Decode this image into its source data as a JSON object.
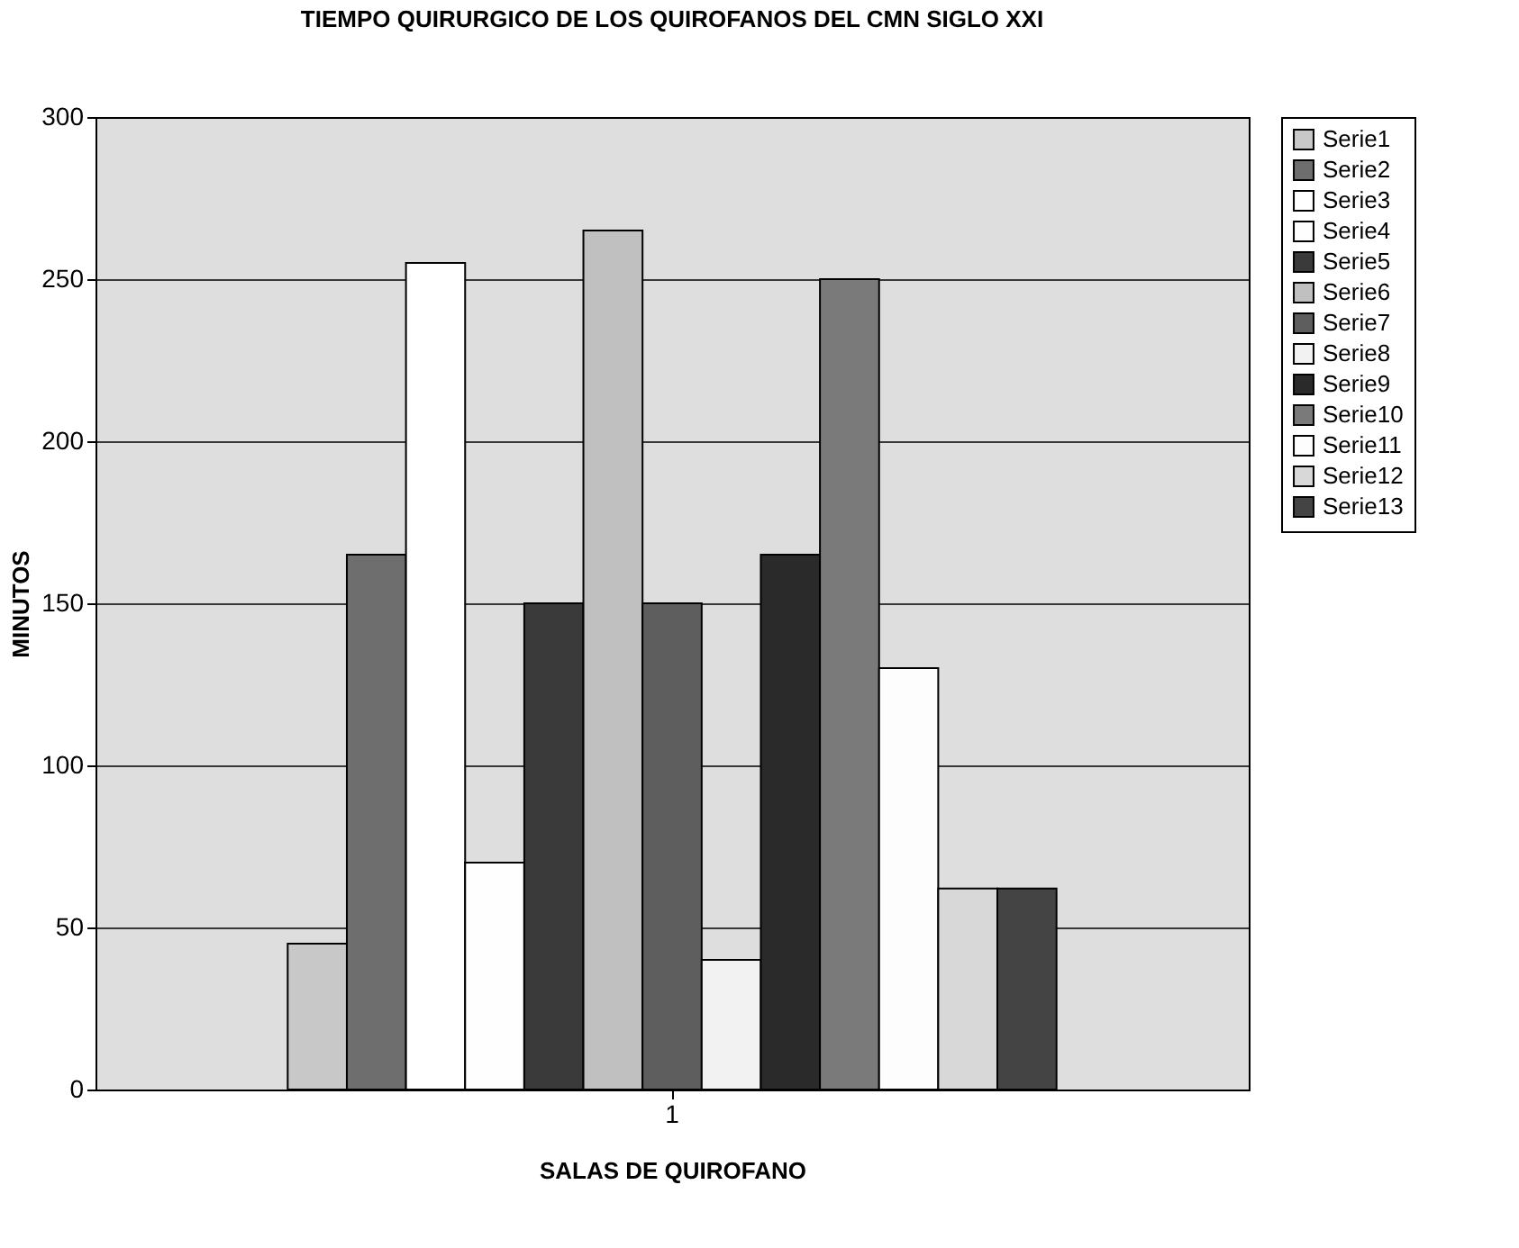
{
  "chart_data": {
    "type": "bar",
    "title": "TIEMPO QUIRURGICO DE LOS QUIROFANOS DEL CMN SIGLO XXI",
    "xlabel": "SALAS DE QUIROFANO",
    "ylabel": "MINUTOS",
    "categories": [
      "1"
    ],
    "series": [
      {
        "name": "Serie1",
        "color": "#c8c8c8",
        "values": [
          45
        ]
      },
      {
        "name": "Serie2",
        "color": "#6e6e6e",
        "values": [
          165
        ]
      },
      {
        "name": "Serie3",
        "color": "#ffffff",
        "values": [
          255
        ]
      },
      {
        "name": "Serie4",
        "color": "#fefefe",
        "values": [
          70
        ]
      },
      {
        "name": "Serie5",
        "color": "#3a3a3a",
        "values": [
          150
        ]
      },
      {
        "name": "Serie6",
        "color": "#c0c0c0",
        "values": [
          265
        ]
      },
      {
        "name": "Serie7",
        "color": "#5e5e5e",
        "values": [
          150
        ]
      },
      {
        "name": "Serie8",
        "color": "#f2f2f2",
        "values": [
          40
        ]
      },
      {
        "name": "Serie9",
        "color": "#2a2a2a",
        "values": [
          165
        ]
      },
      {
        "name": "Serie10",
        "color": "#7a7a7a",
        "values": [
          250
        ]
      },
      {
        "name": "Serie11",
        "color": "#fdfdfd",
        "values": [
          130
        ]
      },
      {
        "name": "Serie12",
        "color": "#d8d8d8",
        "values": [
          62
        ]
      },
      {
        "name": "Serie13",
        "color": "#444444",
        "values": [
          62
        ]
      }
    ],
    "ylim": [
      0,
      300
    ],
    "yticks": [
      0,
      50,
      100,
      150,
      200,
      250,
      300
    ],
    "grid": "y",
    "legend": "right"
  }
}
